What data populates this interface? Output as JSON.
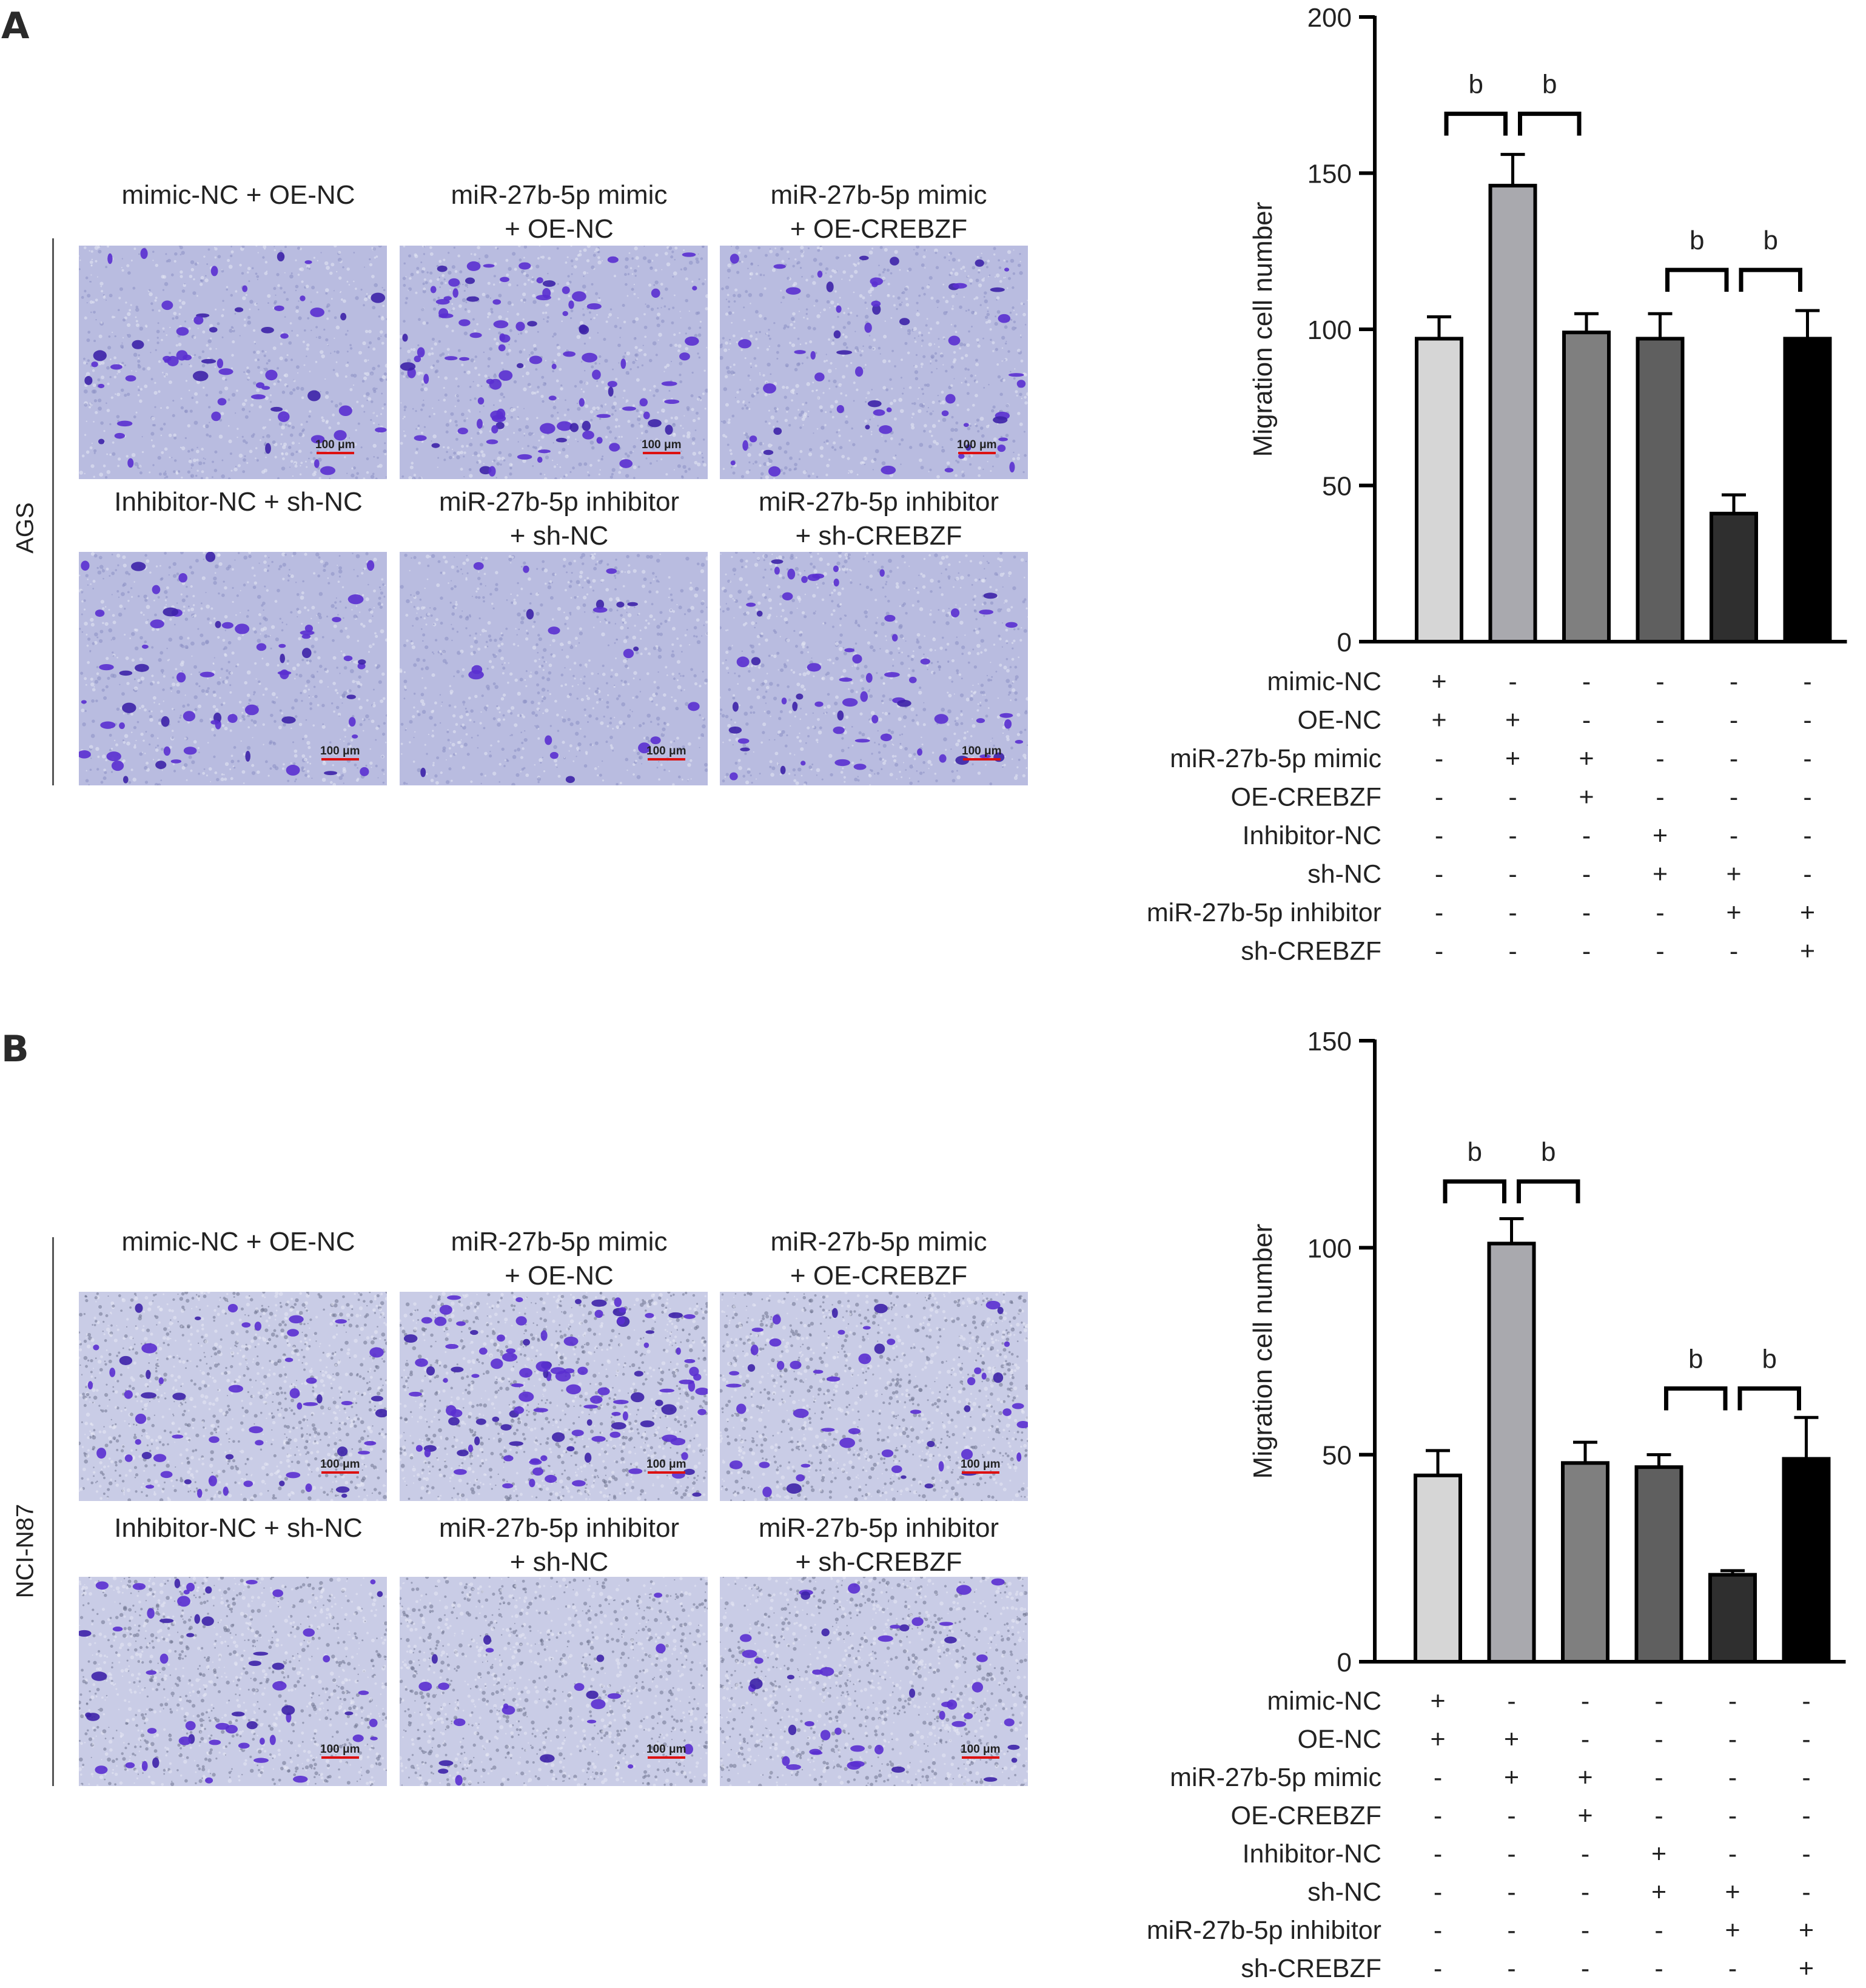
{
  "panels": [
    {
      "letter": "A",
      "cell_line": "AGS",
      "image_labels": [
        "mimic-NC + OE-NC",
        "miR-27b-5p mimic\n+ OE-NC",
        "miR-27b-5p mimic\n+ OE-CREBZF",
        "Inhibitor-NC + sh-NC",
        "miR-27b-5p inhibitor\n+ sh-NC",
        "miR-27b-5p inhibitor\n+ sh-CREBZF"
      ],
      "scale_bar_label": "100 μm"
    },
    {
      "letter": "B",
      "cell_line": "NCI-N87",
      "image_labels": [
        "mimic-NC + OE-NC",
        "miR-27b-5p mimic\n+ OE-NC",
        "miR-27b-5p mimic\n+ OE-CREBZF",
        "Inhibitor-NC + sh-NC",
        "miR-27b-5p inhibitor\n+ sh-NC",
        "miR-27b-5p inhibitor\n+ sh-CREBZF"
      ],
      "scale_bar_label": "100 μm"
    }
  ],
  "chart_data": [
    {
      "type": "bar",
      "panel": "A",
      "ylabel": "Migration cell number",
      "xlabel": "",
      "ylim": [
        0,
        200
      ],
      "yticks": [
        0,
        50,
        100,
        150,
        200
      ],
      "values": [
        97,
        146,
        99,
        97,
        41,
        97
      ],
      "errors": [
        7,
        10,
        6,
        8,
        6,
        9
      ],
      "bar_colors": [
        "#d6d6d6",
        "#a9a9ae",
        "#7f7f7f",
        "#5f5f5f",
        "#2f2f2f",
        "#000000"
      ],
      "significance": [
        {
          "from": 0,
          "to": 1,
          "label": "b",
          "level": 169
        },
        {
          "from": 1,
          "to": 2,
          "label": "b",
          "level": 169
        },
        {
          "from": 3,
          "to": 4,
          "label": "b",
          "level": 119
        },
        {
          "from": 4,
          "to": 5,
          "label": "b",
          "level": 119
        }
      ],
      "conditions": [
        {
          "name": "mimic-NC",
          "signs": [
            "+",
            "-",
            "-",
            "-",
            "-",
            "-"
          ]
        },
        {
          "name": "OE-NC",
          "signs": [
            "+",
            "+",
            "-",
            "-",
            "-",
            "-"
          ]
        },
        {
          "name": "miR-27b-5p mimic",
          "signs": [
            "-",
            "+",
            "+",
            "-",
            "-",
            "-"
          ]
        },
        {
          "name": "OE-CREBZF",
          "signs": [
            "-",
            "-",
            "+",
            "-",
            "-",
            "-"
          ]
        },
        {
          "name": "Inhibitor-NC",
          "signs": [
            "-",
            "-",
            "-",
            "+",
            "-",
            "-"
          ]
        },
        {
          "name": "sh-NC",
          "signs": [
            "-",
            "-",
            "-",
            "+",
            "+",
            "-"
          ]
        },
        {
          "name": "miR-27b-5p inhibitor",
          "signs": [
            "-",
            "-",
            "-",
            "-",
            "+",
            "+"
          ]
        },
        {
          "name": "sh-CREBZF",
          "signs": [
            "-",
            "-",
            "-",
            "-",
            "-",
            "+"
          ]
        }
      ]
    },
    {
      "type": "bar",
      "panel": "B",
      "ylabel": "Migration cell number",
      "xlabel": "",
      "ylim": [
        0,
        150
      ],
      "yticks": [
        0,
        50,
        100,
        150
      ],
      "values": [
        45,
        101,
        48,
        47,
        21,
        49
      ],
      "errors": [
        6,
        6,
        5,
        3,
        1,
        10
      ],
      "bar_colors": [
        "#d6d6d6",
        "#a9a9ae",
        "#7f7f7f",
        "#5f5f5f",
        "#2f2f2f",
        "#000000"
      ],
      "significance": [
        {
          "from": 0,
          "to": 1,
          "label": "b",
          "level": 116
        },
        {
          "from": 1,
          "to": 2,
          "label": "b",
          "level": 116
        },
        {
          "from": 3,
          "to": 4,
          "label": "b",
          "level": 66
        },
        {
          "from": 4,
          "to": 5,
          "label": "b",
          "level": 66
        }
      ],
      "conditions": [
        {
          "name": "mimic-NC",
          "signs": [
            "+",
            "-",
            "-",
            "-",
            "-",
            "-"
          ]
        },
        {
          "name": "OE-NC",
          "signs": [
            "+",
            "+",
            "-",
            "-",
            "-",
            "-"
          ]
        },
        {
          "name": "miR-27b-5p mimic",
          "signs": [
            "-",
            "+",
            "+",
            "-",
            "-",
            "-"
          ]
        },
        {
          "name": "OE-CREBZF",
          "signs": [
            "-",
            "-",
            "+",
            "-",
            "-",
            "-"
          ]
        },
        {
          "name": "Inhibitor-NC",
          "signs": [
            "-",
            "-",
            "-",
            "+",
            "-",
            "-"
          ]
        },
        {
          "name": "sh-NC",
          "signs": [
            "-",
            "-",
            "-",
            "+",
            "+",
            "-"
          ]
        },
        {
          "name": "miR-27b-5p inhibitor",
          "signs": [
            "-",
            "-",
            "-",
            "-",
            "+",
            "+"
          ]
        },
        {
          "name": "sh-CREBZF",
          "signs": [
            "-",
            "-",
            "-",
            "-",
            "-",
            "+"
          ]
        }
      ]
    }
  ]
}
